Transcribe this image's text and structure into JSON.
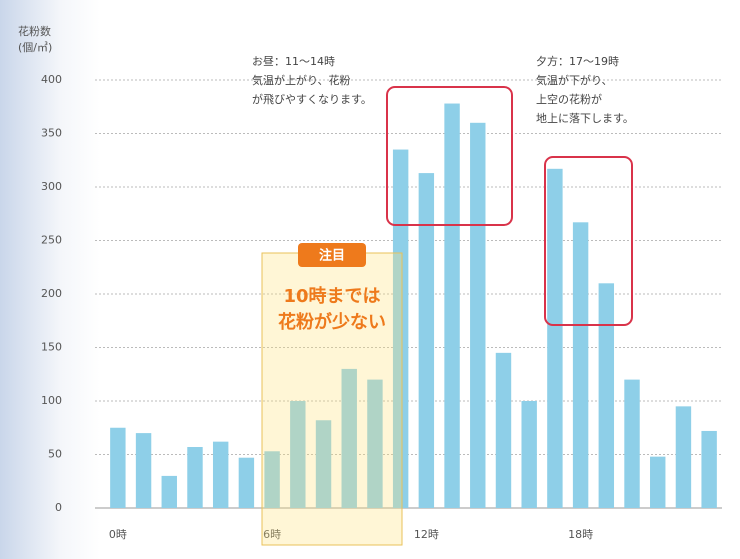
{
  "chart_data": {
    "type": "bar",
    "y_label_lines": [
      "花粉数",
      "(個/㎥)"
    ],
    "categories": [
      "0時",
      null,
      null,
      null,
      null,
      null,
      "6時",
      null,
      null,
      null,
      null,
      null,
      "12時",
      null,
      null,
      null,
      null,
      null,
      "18時",
      null,
      null,
      null,
      null,
      null
    ],
    "series": [
      {
        "name": "花粉数",
        "color": "#8ecfe8",
        "values": [
          75,
          70,
          30,
          57,
          62,
          47,
          53,
          100,
          82,
          130,
          120,
          335,
          313,
          378,
          360,
          145,
          100,
          317,
          267,
          210,
          120,
          48,
          95,
          72
        ]
      }
    ],
    "ylim": [
      0,
      400
    ],
    "yticks": [
      0,
      50,
      100,
      150,
      200,
      250,
      300,
      350,
      400
    ],
    "grid": true,
    "annotations": {
      "noon": [
        "お昼：11～14時",
        "気温が上がり、花粉",
        "が飛びやすくなります。"
      ],
      "evening": [
        "夕方：17～19時",
        "気温が下がり、",
        "上空の花粉が",
        "地上に落下します。"
      ],
      "focus": {
        "badge": "注目",
        "lines": [
          "10時までは",
          "花粉が少ない"
        ]
      }
    }
  }
}
